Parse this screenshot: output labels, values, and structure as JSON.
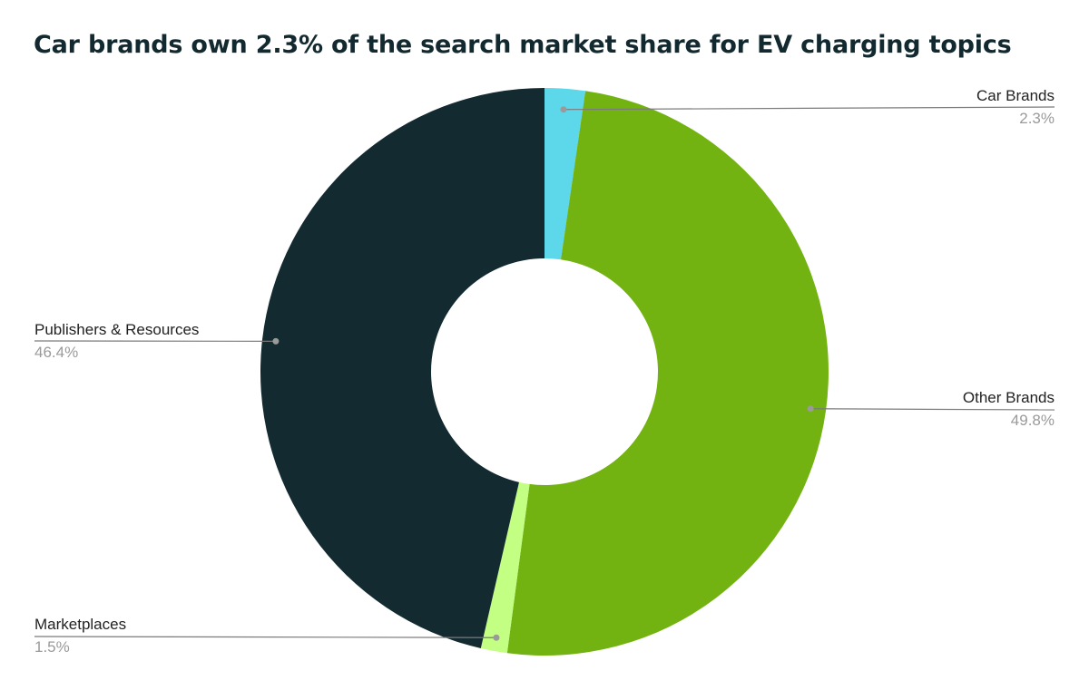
{
  "chart_data": {
    "type": "pie",
    "title": "Car brands own 2.3% of the search market share for EV charging topics",
    "donut": true,
    "slices": [
      {
        "label": "Car Brands",
        "value": 2.3,
        "display": "2.3%",
        "color": "#5dd8ea"
      },
      {
        "label": "Other Brands",
        "value": 49.8,
        "display": "49.8%",
        "color": "#72b312"
      },
      {
        "label": "Marketplaces",
        "value": 1.5,
        "display": "1.5%",
        "color": "#c2ff82"
      },
      {
        "label": "Publishers & Resources",
        "value": 46.4,
        "display": "46.4%",
        "color": "#122a30"
      }
    ]
  }
}
